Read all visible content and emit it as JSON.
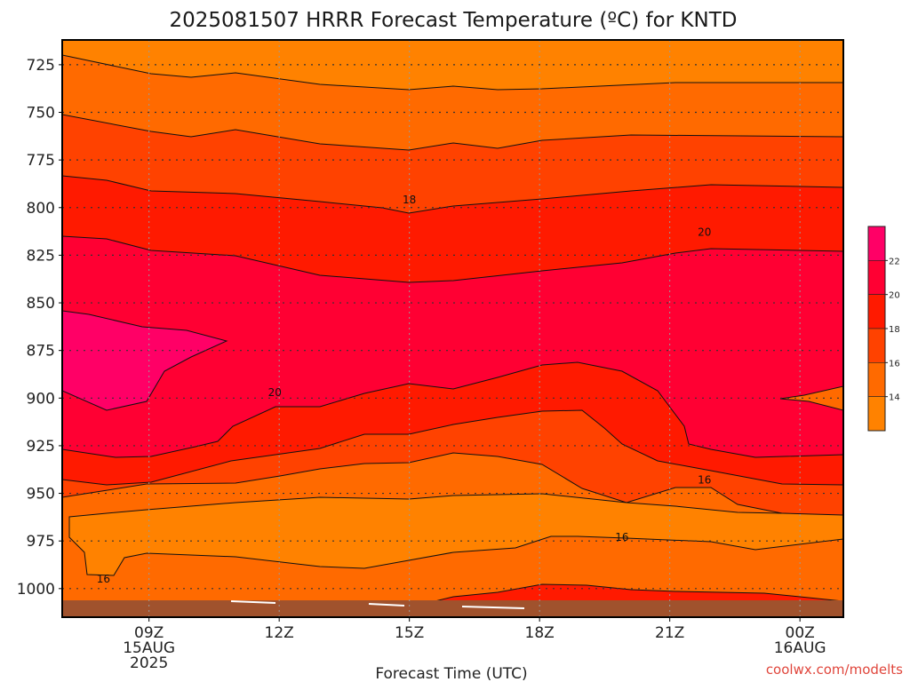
{
  "chart_data": {
    "type": "contour",
    "title": "2025081507 HRRR Forecast Temperature (ºC) for KNTD",
    "xlabel": "Forecast Time (UTC)",
    "ylabel": "",
    "x_range_hours_from_09Z": [
      -2,
      16
    ],
    "y_range_hPa": [
      1015,
      712
    ],
    "y_ticks": [
      {
        "p": 725,
        "label": "725"
      },
      {
        "p": 750,
        "label": "750"
      },
      {
        "p": 775,
        "label": "775"
      },
      {
        "p": 800,
        "label": "800"
      },
      {
        "p": 825,
        "label": "825"
      },
      {
        "p": 850,
        "label": "850"
      },
      {
        "p": 875,
        "label": "875"
      },
      {
        "p": 900,
        "label": "900"
      },
      {
        "p": 925,
        "label": "925"
      },
      {
        "p": 950,
        "label": "950"
      },
      {
        "p": 975,
        "label": "975"
      },
      {
        "p": 1000,
        "label": "1000"
      }
    ],
    "x_ticks": [
      {
        "h": 0,
        "lines": [
          "09Z",
          "15AUG",
          "2025"
        ]
      },
      {
        "h": 3,
        "lines": [
          "12Z"
        ]
      },
      {
        "h": 6,
        "lines": [
          "15Z"
        ]
      },
      {
        "h": 9,
        "lines": [
          "18Z"
        ]
      },
      {
        "h": 12,
        "lines": [
          "21Z"
        ]
      },
      {
        "h": 15,
        "lines": [
          "00Z",
          "16AUG"
        ]
      }
    ],
    "grid": true,
    "colorbar": {
      "labels": [
        "22",
        "20",
        "18",
        "16",
        "14"
      ],
      "colors": [
        "#ff0066",
        "#ff0033",
        "#ff1a00",
        "#ff4200",
        "#ff6a00",
        "#ff8200"
      ]
    },
    "ground_color": "#a0522d",
    "contour_labels": [
      {
        "text": "18",
        "h": 6.0,
        "p": 796
      },
      {
        "text": "20",
        "h": 12.8,
        "p": 813
      },
      {
        "text": "20",
        "h": 2.9,
        "p": 897
      },
      {
        "text": "16",
        "h": 12.8,
        "p": 943
      },
      {
        "text": "16",
        "h": 10.9,
        "p": 973
      },
      {
        "text": "16",
        "h": -1.05,
        "p": 995
      }
    ]
  },
  "credit": "coolwx.com/modelts"
}
